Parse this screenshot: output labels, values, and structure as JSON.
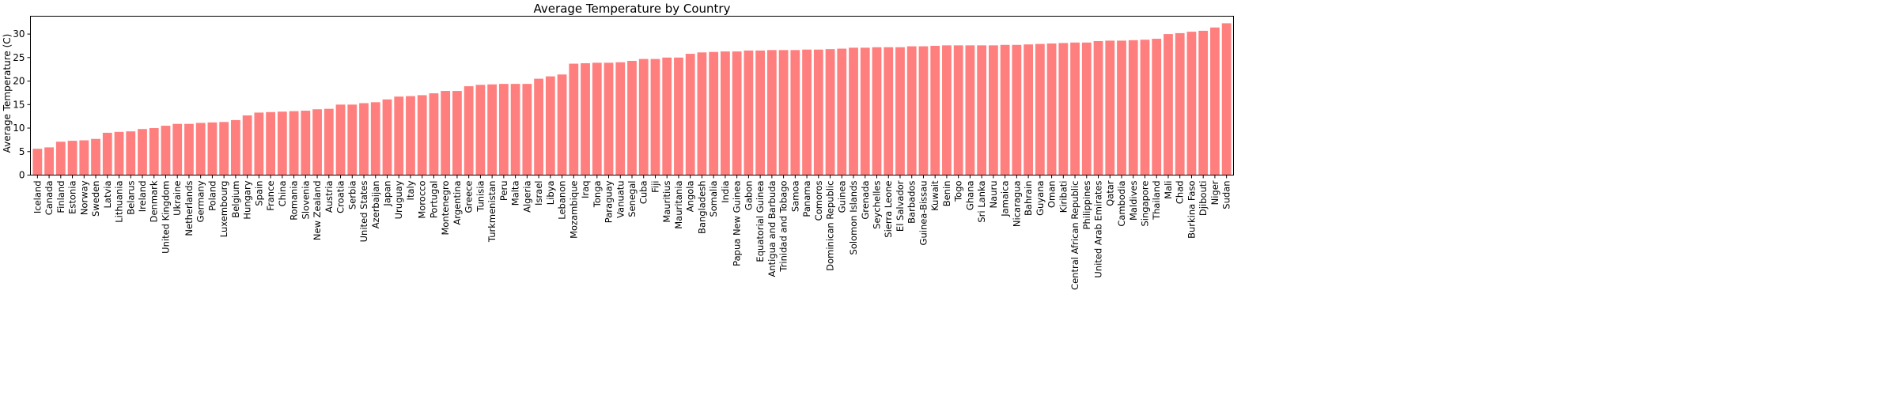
{
  "chart_data": {
    "type": "bar",
    "title": "Average Temperature by Country",
    "xlabel": "",
    "ylabel": "Average Temperature (C)",
    "ylim": [
      0,
      33.8
    ],
    "yticks": [
      0,
      5,
      10,
      15,
      20,
      25,
      30
    ],
    "grid": false,
    "bar_color": "#ff7f7f",
    "categories": [
      "Iceland",
      "Canada",
      "Finland",
      "Estonia",
      "Norway",
      "Sweden",
      "Latvia",
      "Lithuania",
      "Belarus",
      "Ireland",
      "Denmark",
      "United Kingdom",
      "Ukraine",
      "Netherlands",
      "Germany",
      "Poland",
      "Luxembourg",
      "Belgium",
      "Hungary",
      "Spain",
      "France",
      "China",
      "Romania",
      "Slovenia",
      "New Zealand",
      "Austria",
      "Croatia",
      "Serbia",
      "United States",
      "Azerbaijan",
      "Japan",
      "Uruguay",
      "Italy",
      "Morocco",
      "Portugal",
      "Montenegro",
      "Argentina",
      "Greece",
      "Tunisia",
      "Turkmenistan",
      "Peru",
      "Malta",
      "Algeria",
      "Israel",
      "Libya",
      "Lebanon",
      "Mozambique",
      "Iraq",
      "Tonga",
      "Paraguay",
      "Vanuatu",
      "Senegal",
      "Cuba",
      "Fiji",
      "Mauritius",
      "Mauritania",
      "Angola",
      "Bangladesh",
      "Somalia",
      "India",
      "Papua New Guinea",
      "Gabon",
      "Equatorial Guinea",
      "Antigua and Barbuda",
      "Trinidad and Tobago",
      "Samoa",
      "Panama",
      "Comoros",
      "Dominican Republic",
      "Guinea",
      "Solomon Islands",
      "Grenada",
      "Seychelles",
      "Sierra Leone",
      "El Salvador",
      "Barbados",
      "Guinea-Bissau",
      "Kuwait",
      "Benin",
      "Togo",
      "Ghana",
      "Sri Lanka",
      "Nauru",
      "Jamaica",
      "Nicaragua",
      "Bahrain",
      "Guyana",
      "Oman",
      "Kiribati",
      "Central African Republic",
      "Philippines",
      "United Arab Emirates",
      "Qatar",
      "Cambodia",
      "Maldives",
      "Singapore",
      "Thailand",
      "Mali",
      "Chad",
      "Burkina Faso",
      "Djibouti",
      "Niger",
      "Sudan"
    ],
    "values": [
      5.6,
      5.9,
      7.1,
      7.3,
      7.4,
      7.7,
      9.0,
      9.2,
      9.3,
      9.8,
      10.0,
      10.5,
      10.9,
      10.9,
      11.1,
      11.2,
      11.3,
      11.7,
      12.7,
      13.3,
      13.4,
      13.5,
      13.6,
      13.7,
      14.0,
      14.1,
      15.0,
      15.0,
      15.3,
      15.5,
      16.1,
      16.7,
      16.8,
      17.0,
      17.4,
      17.9,
      17.9,
      18.9,
      19.2,
      19.3,
      19.4,
      19.4,
      19.4,
      20.5,
      21.0,
      21.4,
      23.7,
      23.8,
      23.9,
      23.9,
      24.0,
      24.3,
      24.7,
      24.7,
      25.0,
      25.0,
      25.8,
      26.1,
      26.2,
      26.3,
      26.3,
      26.5,
      26.5,
      26.6,
      26.6,
      26.6,
      26.7,
      26.7,
      26.8,
      26.9,
      27.1,
      27.1,
      27.2,
      27.2,
      27.2,
      27.4,
      27.4,
      27.5,
      27.6,
      27.6,
      27.6,
      27.6,
      27.6,
      27.7,
      27.7,
      27.8,
      27.9,
      28.0,
      28.1,
      28.2,
      28.2,
      28.5,
      28.6,
      28.6,
      28.7,
      28.8,
      29.0,
      30.0,
      30.2,
      30.5,
      30.7,
      31.4,
      32.3
    ]
  }
}
